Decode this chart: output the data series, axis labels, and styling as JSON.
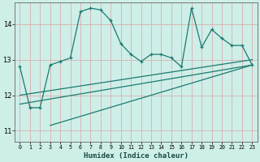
{
  "xlabel": "Humidex (Indice chaleur)",
  "bg_color": "#ceeee8",
  "line_color": "#1a7a6e",
  "grid_color": "#b0d8d0",
  "xlim": [
    -0.5,
    23.5
  ],
  "ylim": [
    10.7,
    14.6
  ],
  "yticks": [
    11,
    12,
    13,
    14
  ],
  "xticks": [
    0,
    1,
    2,
    3,
    4,
    5,
    6,
    7,
    8,
    9,
    10,
    11,
    12,
    13,
    14,
    15,
    16,
    17,
    18,
    19,
    20,
    21,
    22,
    23
  ],
  "series1_x": [
    0,
    1,
    2,
    3,
    4,
    5,
    6,
    7,
    8,
    9,
    10,
    11,
    12,
    13,
    14,
    15,
    16,
    17,
    18,
    19,
    20,
    21,
    22,
    23
  ],
  "series1_y": [
    12.8,
    11.65,
    11.65,
    12.85,
    12.95,
    13.05,
    14.35,
    14.45,
    14.4,
    14.1,
    13.45,
    13.15,
    12.95,
    13.15,
    13.15,
    13.05,
    12.8,
    14.45,
    13.35,
    13.85,
    13.6,
    13.4,
    13.4,
    12.85
  ],
  "series2_x": [
    0,
    23
  ],
  "series2_y": [
    11.75,
    12.85
  ],
  "series3_x": [
    0,
    23
  ],
  "series3_y": [
    12.0,
    13.0
  ],
  "series4_x": [
    3,
    23
  ],
  "series4_y": [
    11.15,
    12.85
  ]
}
